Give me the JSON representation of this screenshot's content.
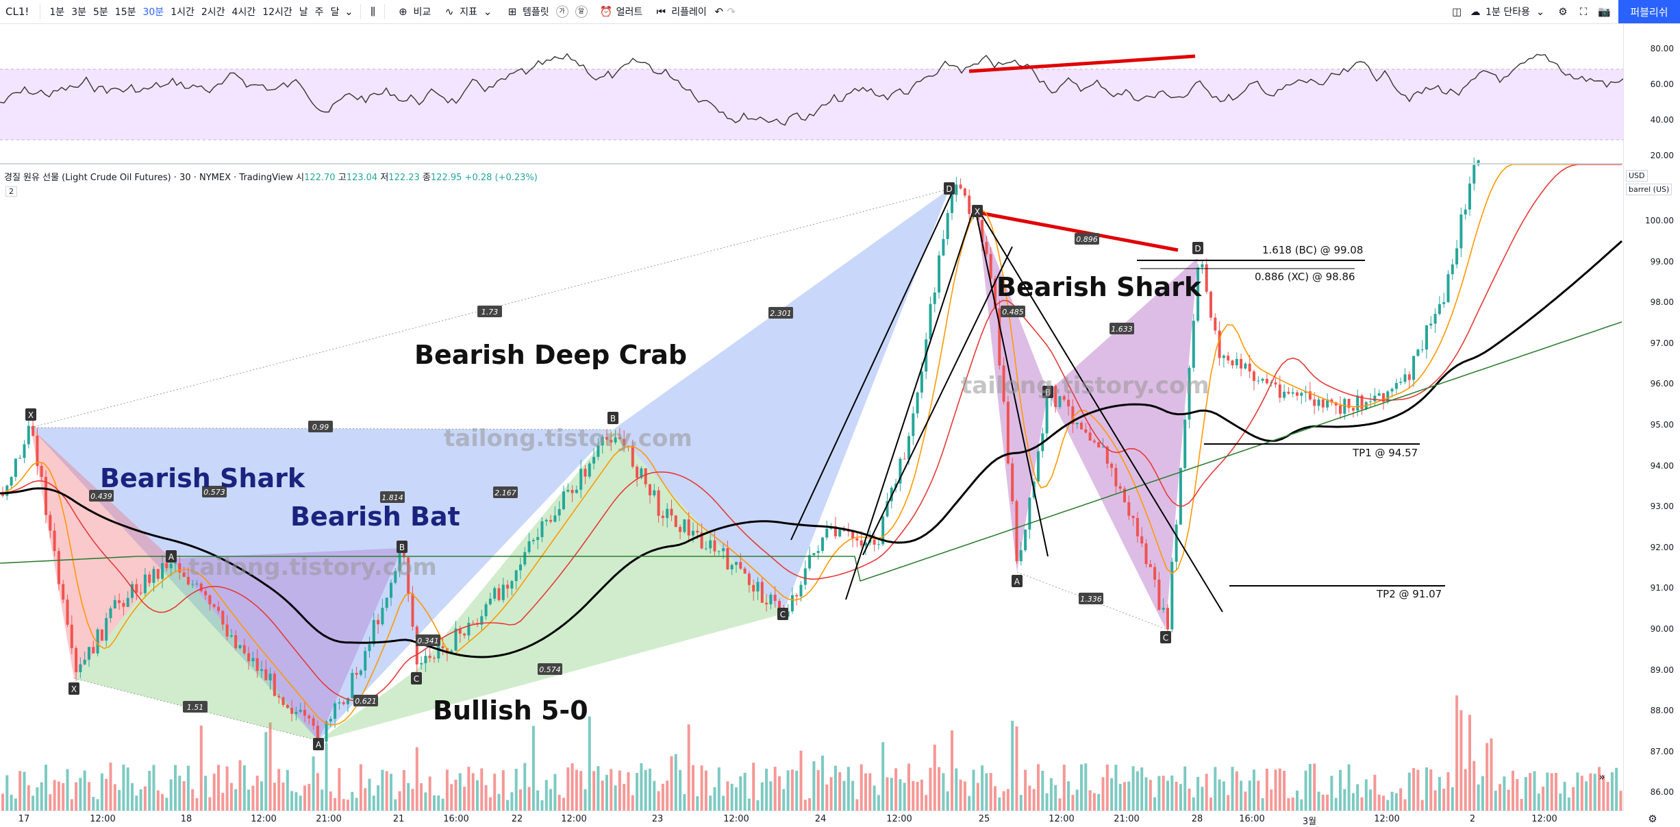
{
  "toolbar": {
    "symbol": "CL1!",
    "intervals": [
      "1분",
      "3분",
      "5분",
      "15분",
      "30분",
      "1시간",
      "2시간",
      "4시간",
      "12시간",
      "날",
      "주",
      "달"
    ],
    "active_interval": "30분",
    "compare_label": "비교",
    "indicator_label": "지표",
    "template_label": "템플릿",
    "alert_label": "얼러트",
    "replay_label": "리플레이",
    "trade_label": "1분 단타용",
    "publish_label": "퍼블리쉬"
  },
  "legend": {
    "title": "경질 원유 선물 (Light Crude Oil Futures) · 30 · NYMEX · TradingView",
    "o_label": "시",
    "o": "122.70",
    "h_label": "고",
    "h": "123.04",
    "l_label": "저",
    "l": "122.23",
    "c_label": "종",
    "c": "122.95",
    "change": "+0.28 (+0.23%)",
    "badge": "2"
  },
  "rsi_scale": [
    "80.00",
    "60.00",
    "40.00",
    "20.00"
  ],
  "price_scale": [
    "100.00",
    "99.00",
    "98.00",
    "97.00",
    "96.00",
    "95.00",
    "94.00",
    "93.00",
    "92.00",
    "91.00",
    "90.00",
    "89.00",
    "88.00",
    "87.00",
    "86.00"
  ],
  "currency": "USD",
  "unit": "barrel (US)",
  "time_axis": [
    "17",
    "12:00",
    "18",
    "12:00",
    "21:00",
    "21",
    "16:00",
    "22",
    "12:00",
    "23",
    "12:00",
    "24",
    "12:00",
    "25",
    "12:00",
    "21:00",
    "28",
    "16:00",
    "3월",
    "12:00",
    "2",
    "12:00"
  ],
  "annotations": {
    "bearish_deep_crab": "Bearish Deep Crab",
    "bearish_shark_left": "Bearish Shark",
    "bearish_bat": "Bearish Bat",
    "bullish_50": "Bullish 5-0",
    "bearish_shark_right": "Bearish Shark",
    "watermark": "tailong.tistory.com",
    "tp1": "TP1 @ 94.57",
    "tp2": "TP2 @ 91.07",
    "bc_level": "1.618 (BC) @ 99.08",
    "xc_level": "0.886 (XC) @ 98.86"
  },
  "ratios": [
    "1.73",
    "2.301",
    "0.99",
    "1.814",
    "2.167",
    "0.439",
    "0.573",
    "1.51",
    "0.621",
    "0.341",
    "0.574",
    "0.896",
    "0.485",
    "1.633",
    "1.336"
  ],
  "points": [
    "X",
    "A",
    "B",
    "C",
    "D"
  ],
  "colors": {
    "accent": "#2962ff",
    "up": "#26a69a",
    "down": "#ef5350",
    "rsi_band": "#f3e5ff",
    "rsi_line": "#7e57c2"
  }
}
